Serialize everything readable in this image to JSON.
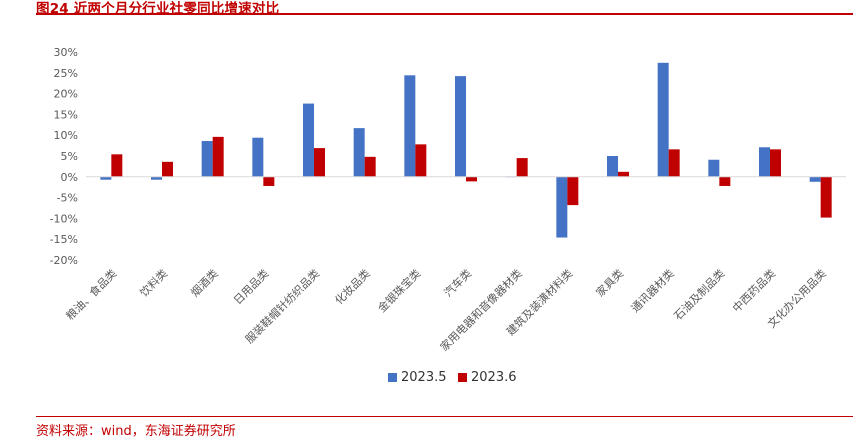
{
  "figure": {
    "title": "图24  近两个月分行业社零同比增速对比",
    "source": "资料来源：wind，东海证券研究所"
  },
  "colors": {
    "series_1": "#4472c4",
    "series_2": "#c00000",
    "grid": "#d9d9d9",
    "axis_text": "#595959"
  },
  "chart_data": {
    "type": "bar",
    "categories": [
      "粮油、食品类",
      "饮料类",
      "烟酒类",
      "日用品类",
      "服装鞋帽针纺织品类",
      "化妆品类",
      "金银珠宝类",
      "汽车类",
      "家用电器和音像器材类",
      "建筑及装潢材料类",
      "家具类",
      "通讯器材类",
      "石油及制品类",
      "中西药品类",
      "文化办公用品类"
    ],
    "series": [
      {
        "name": "2023.5",
        "values": [
          -0.7,
          -0.7,
          8.6,
          9.4,
          17.6,
          11.7,
          24.4,
          24.2,
          0.1,
          -14.6,
          5.0,
          27.4,
          4.1,
          7.1,
          -1.2
        ]
      },
      {
        "name": "2023.6",
        "values": [
          5.4,
          3.6,
          9.6,
          -2.2,
          6.9,
          4.8,
          7.8,
          -1.1,
          4.5,
          -6.8,
          1.2,
          6.6,
          -2.2,
          6.6,
          -9.8
        ]
      }
    ],
    "ylim": [
      -20,
      30
    ],
    "yticks": [
      "30%",
      "25%",
      "20%",
      "15%",
      "10%",
      "5%",
      "0%",
      "-5%",
      "-10%",
      "-15%",
      "-20%"
    ],
    "legend_position": "bottom-center",
    "grid": false
  }
}
